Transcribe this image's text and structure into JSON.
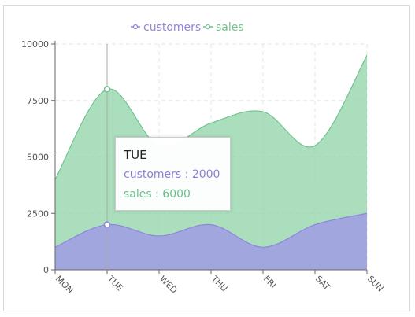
{
  "colors": {
    "customers": "#9f98e6",
    "customers_line": "#8f86db",
    "sales": "#8fd3a7",
    "sales_line": "#72c38f",
    "grid": "#e6e6e6",
    "axis": "#666666"
  },
  "legend": {
    "items": [
      {
        "label": "customers",
        "color": "#8f86db"
      },
      {
        "label": "sales",
        "color": "#72c38f"
      }
    ]
  },
  "tooltip": {
    "title": "TUE",
    "customers": "customers : 2000",
    "sales": "sales : 6000"
  },
  "chart_data": {
    "type": "area",
    "categories": [
      "MON",
      "TUE",
      "WED",
      "THU",
      "FRI",
      "SAT",
      "SUN"
    ],
    "series": [
      {
        "name": "customers",
        "values": [
          1000,
          2000,
          1500,
          2000,
          1000,
          2000,
          2500
        ]
      },
      {
        "name": "sales",
        "values": [
          3000,
          6000,
          4000,
          4500,
          6000,
          3500,
          7000
        ]
      }
    ],
    "stacked": true,
    "ylim": [
      0,
      10000
    ],
    "yticks": [
      0,
      2500,
      5000,
      7500,
      10000
    ],
    "grid": true,
    "legend": "top",
    "highlight": "TUE"
  }
}
